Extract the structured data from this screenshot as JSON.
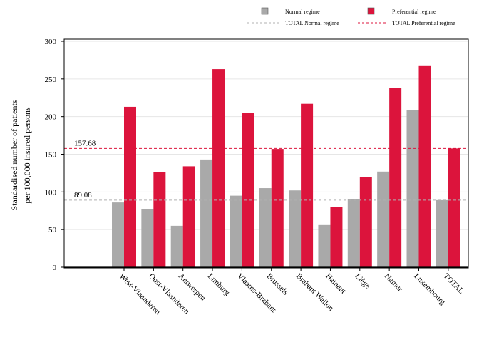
{
  "chart_data": {
    "type": "bar",
    "ylabel_lines": [
      "Standardised number of patients",
      "per 100,000 insured persons"
    ],
    "ylim": [
      0,
      300
    ],
    "yticks": [
      0,
      50,
      100,
      150,
      200,
      250,
      300
    ],
    "grid": true,
    "legend_position": "top",
    "categories": [
      "West-Vlaanderen",
      "Oost-Vlaanderen",
      "Antwerpen",
      "Limburg",
      "Vlaams-Brabant",
      "Brussels",
      "Brabant Wallon",
      "Hainaut",
      "Liège",
      "Namur",
      "Luxembourg",
      "TOTAL"
    ],
    "series": [
      {
        "name": "Normal regime",
        "color": "#a9a9a9",
        "values": [
          86,
          77,
          55,
          143,
          95,
          105,
          102,
          56,
          90,
          127,
          209,
          89.08
        ]
      },
      {
        "name": "Preferential regime",
        "color": "#dc143c",
        "values": [
          213,
          126,
          134,
          263,
          205,
          157,
          217,
          80,
          120,
          238,
          268,
          157.68
        ]
      }
    ],
    "reference_lines": [
      {
        "name": "TOTAL Normal regime",
        "value": 89.08,
        "label": "89.08",
        "color": "#b0b0b0"
      },
      {
        "name": "TOTAL Preferential regime",
        "value": 157.68,
        "label": "157.68",
        "color": "#dc143c"
      }
    ]
  }
}
